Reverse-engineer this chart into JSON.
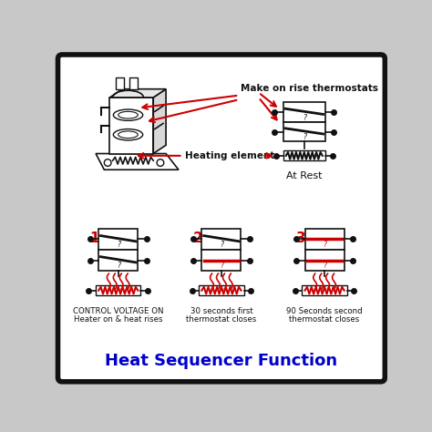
{
  "title": "Heat Sequencer Function",
  "title_color": "#0000cc",
  "title_fontsize": 13,
  "bg_color": "#c8c8c8",
  "border_color": "#111111",
  "diagram_bg": "#ffffff",
  "black": "#111111",
  "red": "#cc0000",
  "label_make_on_rise": "Make on rise thermostats",
  "label_heating_element": "Heating element",
  "label_at_rest": "At Rest",
  "label1_num": "1.",
  "label2_num": "2.",
  "label3_num": "3.",
  "label1_text1": "CONTROL VOLTAGE ON",
  "label1_text2": "Heater on & heat rises",
  "label2_text1": "30 seconds first",
  "label2_text2": "thermostat closes",
  "label3_text1": "90 Seconds second",
  "label3_text2": "thermostat closes"
}
